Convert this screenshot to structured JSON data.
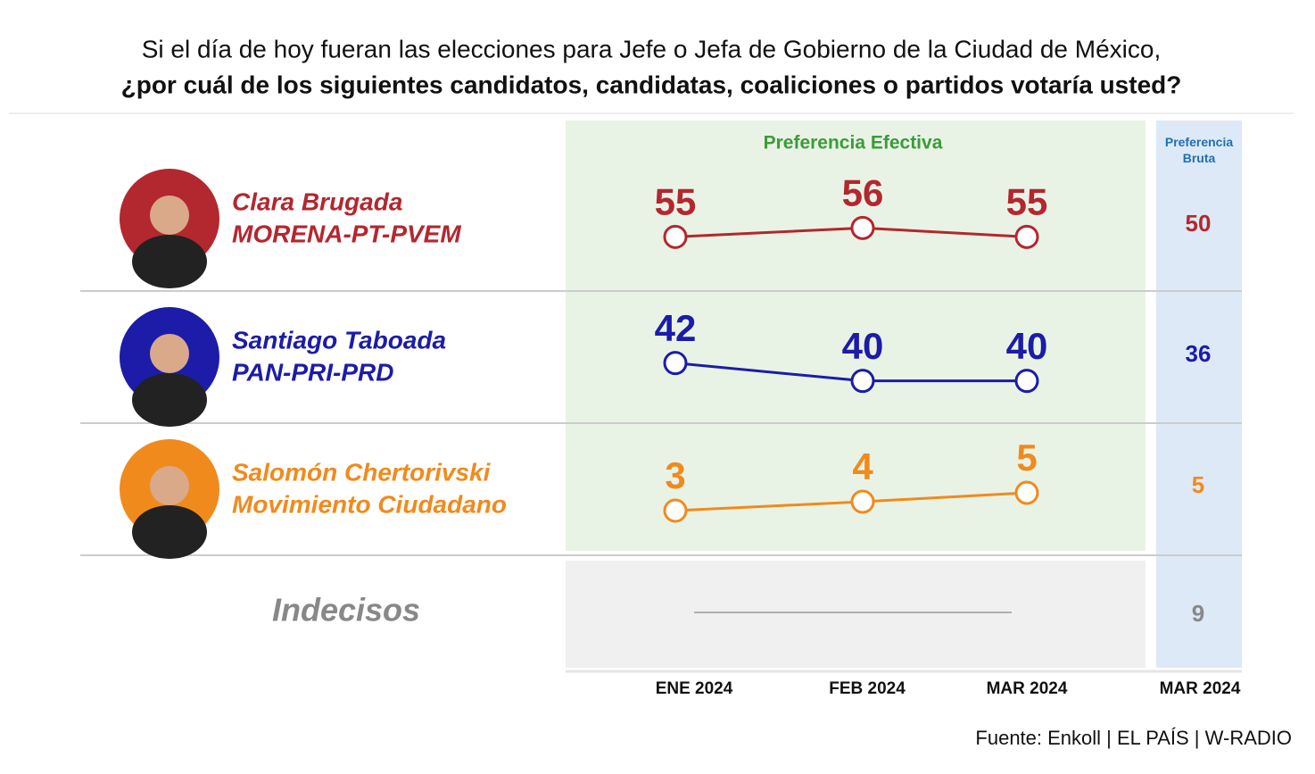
{
  "chart_data": {
    "type": "line",
    "title": "Si el día de hoy fueran las elecciones para Jefe o Jefa de Gobierno de la Ciudad de México,",
    "subtitle": "¿por cuál de los siguientes candidatos, candidatas, coaliciones o partidos votaría usted?",
    "panel_label": "Preferencia Efectiva",
    "bruta_label": "Preferencia Bruta",
    "categories": [
      "ENE 2024",
      "FEB 2024",
      "MAR 2024"
    ],
    "bruta_category": "MAR 2024",
    "series": [
      {
        "name": "Clara Brugada",
        "party": "MORENA-PT-PVEM",
        "color": "#b3272f",
        "values": [
          55,
          56,
          55
        ],
        "bruta": 50
      },
      {
        "name": "Santiago Taboada",
        "party": "PAN-PRI-PRD",
        "color": "#1c1ca8",
        "values": [
          42,
          40,
          40
        ],
        "bruta": 36
      },
      {
        "name": "Salomón Chertorivski",
        "party": "Movimiento Ciudadano",
        "color": "#f18a1d",
        "values": [
          3,
          4,
          5
        ],
        "bruta": 5
      }
    ],
    "undecided": {
      "name": "Indecisos",
      "bruta": 9
    },
    "source": "Fuente: Enkoll | EL PAÍS | W-RADIO"
  }
}
